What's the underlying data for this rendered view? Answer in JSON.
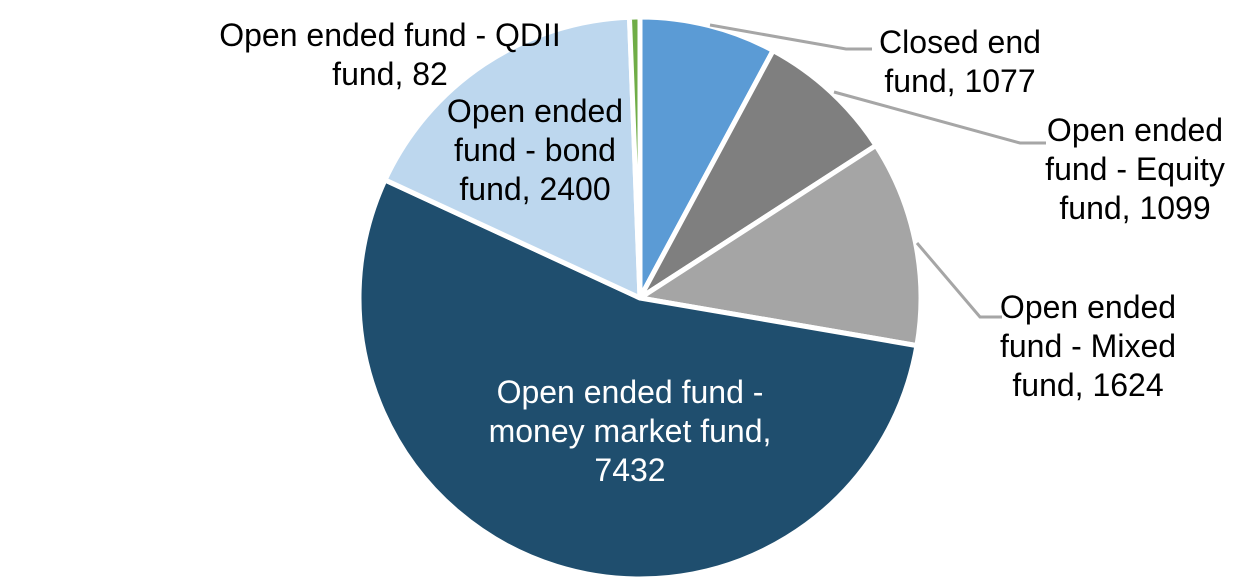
{
  "chart_data": {
    "type": "pie",
    "title": "",
    "legend": "none",
    "grid": "off",
    "background_color": "#FFFFFF",
    "slice_border_color": "#FFFFFF",
    "leader_line_color": "#A6A6A6",
    "outside_label_color": "#000000",
    "inside_label_color": "#FFFFFF",
    "start_angle_deg": 0,
    "direction": "clockwise",
    "categories": [
      "Closed end fund",
      "Open ended fund - Equity fund",
      "Open ended fund - Mixed fund",
      "Open ended fund - money market fund",
      "Open ended fund - bond fund",
      "Open ended fund - QDII fund"
    ],
    "values": [
      1077,
      1099,
      1624,
      7432,
      2400,
      82
    ],
    "slices": [
      {
        "id": "closed-end-fund",
        "name": "Closed end fund",
        "value": 1077,
        "color": "#5B9BD5",
        "label": "Closed end\nfund, 1077",
        "label_position": "outside-right"
      },
      {
        "id": "open-ended-fund-equity-fund",
        "name": "Open ended fund - Equity fund",
        "value": 1099,
        "color": "#7F7F7F",
        "label": "Open ended\nfund - Equity\nfund, 1099",
        "label_position": "outside-right"
      },
      {
        "id": "open-ended-fund-mixed-fund",
        "name": "Open ended fund - Mixed fund",
        "value": 1624,
        "color": "#A5A5A5",
        "label": "Open ended\nfund - Mixed\nfund, 1624",
        "label_position": "outside-right"
      },
      {
        "id": "open-ended-fund-money-market-fund",
        "name": "Open ended fund - money market fund",
        "value": 7432,
        "color": "#1F4E6E",
        "label": "Open ended fund -\nmoney market fund,\n7432",
        "label_position": "inside"
      },
      {
        "id": "open-ended-fund-bond-fund",
        "name": "Open ended fund - bond fund",
        "value": 2400,
        "color": "#BDD7EE",
        "label": "Open ended\nfund - bond\nfund, 2400",
        "label_position": "outside-left"
      },
      {
        "id": "open-ended-fund-qdii-fund",
        "name": "Open ended fund - QDII fund",
        "value": 82,
        "color": "#70AD47",
        "label": "Open ended fund - QDII\nfund, 82",
        "label_position": "outside-left"
      }
    ]
  }
}
